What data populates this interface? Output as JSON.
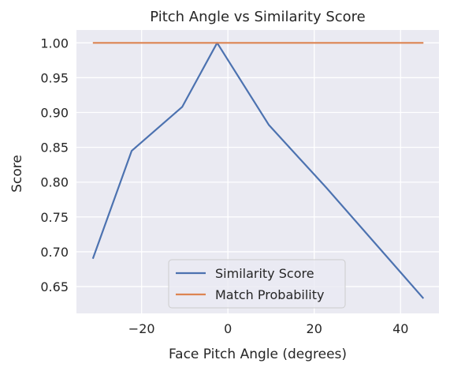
{
  "chart_data": {
    "type": "line",
    "title": "Pitch Angle vs Similarity Score",
    "xlabel": "Face Pitch Angle (degrees)",
    "ylabel": "Score",
    "xlim": [
      -35.1,
      48.9
    ],
    "ylim": [
      0.6115,
      1.0185
    ],
    "xticks": [
      -20,
      0,
      20,
      40
    ],
    "xtick_labels": [
      "−20",
      "0",
      "20",
      "40"
    ],
    "yticks": [
      0.65,
      0.7,
      0.75,
      0.8,
      0.85,
      0.9,
      0.95,
      1.0
    ],
    "ytick_labels": [
      "0.65",
      "0.70",
      "0.75",
      "0.80",
      "0.85",
      "0.90",
      "0.95",
      "1.00"
    ],
    "grid": true,
    "legend_position": "lower-center",
    "series": [
      {
        "name": "Similarity Score",
        "color": "#4c72b0",
        "x": [
          -31.3,
          -22.3,
          -10.6,
          -2.5,
          9.5,
          22.8,
          45.3
        ],
        "y": [
          0.69,
          0.845,
          0.908,
          1.0,
          0.882,
          0.792,
          0.633
        ]
      },
      {
        "name": "Match Probability",
        "color": "#dd8452",
        "x": [
          -31.3,
          -22.3,
          -10.6,
          -2.5,
          9.5,
          22.8,
          45.3
        ],
        "y": [
          1.0,
          1.0,
          1.0,
          1.0,
          1.0,
          1.0,
          1.0
        ]
      }
    ],
    "colors": {
      "plot_background": "#eaeaf2",
      "grid": "#ffffff"
    }
  }
}
